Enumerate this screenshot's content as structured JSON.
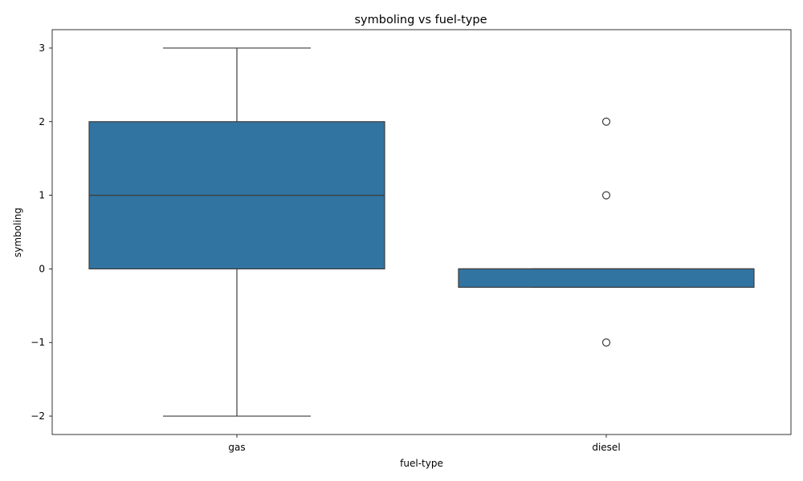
{
  "chart_data": {
    "type": "box",
    "title": "symboling vs fuel-type",
    "xlabel": "fuel-type",
    "ylabel": "symboling",
    "categories": [
      "gas",
      "diesel"
    ],
    "ylim": [
      -2.25,
      3.25
    ],
    "yticks": [
      3,
      2,
      1,
      0,
      -1,
      -2
    ],
    "ytick_labels": [
      "3",
      "2",
      "1",
      "0",
      "−1",
      "−2"
    ],
    "grid": false,
    "legend": "none",
    "box_color": "#3274a1",
    "edge_color": "#3d3d3d",
    "boxes": [
      {
        "category": "gas",
        "whisker_low": -2,
        "q1": 0,
        "median": 1,
        "q3": 2,
        "whisker_high": 3,
        "outliers": []
      },
      {
        "category": "diesel",
        "whisker_low": -0.25,
        "q1": -0.25,
        "median": 0,
        "q3": 0,
        "whisker_high": 0,
        "outliers": [
          2,
          1,
          -1
        ]
      }
    ]
  }
}
